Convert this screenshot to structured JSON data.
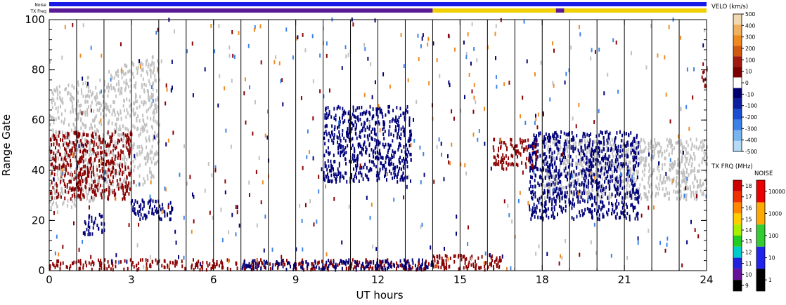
{
  "chart_data": {
    "type": "scatter",
    "title": "",
    "xlabel": "UT hours",
    "ylabel": "Range Gate",
    "xlim": [
      0,
      24
    ],
    "ylim": [
      0,
      100
    ],
    "x_ticks": [
      "0",
      "3",
      "6",
      "9",
      "12",
      "15",
      "18",
      "21",
      "24"
    ],
    "y_ticks": [
      "0",
      "20",
      "40",
      "60",
      "80",
      "100"
    ],
    "status_bars": [
      {
        "label": "Noise",
        "segments": [
          {
            "from": 0,
            "to": 24,
            "color": "#1a1ae6"
          }
        ]
      },
      {
        "label": "TX Freq",
        "segments": [
          {
            "from": 0,
            "to": 14,
            "color": "#5a1a96"
          },
          {
            "from": 14,
            "to": 18.5,
            "color": "#f0d000"
          },
          {
            "from": 18.5,
            "to": 18.8,
            "color": "#5a1a96"
          },
          {
            "from": 18.8,
            "to": 24,
            "color": "#f0d000"
          }
        ]
      }
    ],
    "velocity_colorbar": {
      "label": "VELO (km/s)",
      "ticks": [
        "500",
        "400",
        "300",
        "200",
        "100",
        "10",
        "0",
        "-10",
        "-100",
        "-200",
        "-300",
        "-400",
        "-500"
      ],
      "colors": [
        "#f2d8b0",
        "#f0b060",
        "#ee8a20",
        "#d05a10",
        "#a01a10",
        "#7a0000",
        "#ffffff",
        "#00006e",
        "#0a1e9e",
        "#1a4ed0",
        "#3c82e6",
        "#78b4ee",
        "#b4daf6"
      ]
    },
    "txfreq_colorbar": {
      "label": "TX FRQ (MHz)",
      "ticks": [
        "18",
        "17",
        "16",
        "15",
        "14",
        "13",
        "12",
        "11",
        "10",
        "9"
      ],
      "colors": [
        "#cc0000",
        "#ee3300",
        "#ff8800",
        "#ffcc00",
        "#aaee00",
        "#22cc22",
        "#00cccc",
        "#2222dd",
        "#661199",
        "#000000"
      ]
    },
    "noise_colorbar": {
      "label": "NOISE",
      "ticks": [
        "10000",
        "1000",
        "100",
        "10",
        "1"
      ],
      "colors": [
        "#ee0000",
        "#ffaa00",
        "#33cc33",
        "#2222ee",
        "#000000"
      ]
    },
    "series": [
      {
        "kind": "ground_scatter",
        "color": "#c0c0c0",
        "bands": [
          {
            "x0": 0.0,
            "x1": 4.0,
            "g0": 22,
            "g1": 72,
            "slope": 0.7
          },
          {
            "x0": 18.0,
            "x1": 24.0,
            "g0": 28,
            "g1": 52,
            "slope": 0
          }
        ]
      },
      {
        "kind": "velocity_negative",
        "color": "#8b0000",
        "bands": [
          {
            "x0": 0.0,
            "x1": 14.5,
            "g0": 0,
            "g1": 4
          },
          {
            "x0": 14.0,
            "x1": 16.5,
            "g0": 0,
            "g1": 6
          },
          {
            "x0": 0.0,
            "x1": 3.0,
            "g0": 28,
            "g1": 55
          },
          {
            "x0": 16.2,
            "x1": 17.8,
            "g0": 40,
            "g1": 52
          },
          {
            "x0": 23.8,
            "x1": 24.0,
            "g0": 72,
            "g1": 82
          }
        ]
      },
      {
        "kind": "velocity_positive",
        "color": "#00007a",
        "bands": [
          {
            "x0": 1.2,
            "x1": 2.0,
            "g0": 14,
            "g1": 22
          },
          {
            "x0": 3.0,
            "x1": 4.5,
            "g0": 20,
            "g1": 28
          },
          {
            "x0": 10.0,
            "x1": 13.2,
            "g0": 35,
            "g1": 65
          },
          {
            "x0": 17.5,
            "x1": 21.5,
            "g0": 20,
            "g1": 55
          },
          {
            "x0": 7.0,
            "x1": 14.0,
            "g0": 0,
            "g1": 4
          }
        ]
      }
    ]
  }
}
